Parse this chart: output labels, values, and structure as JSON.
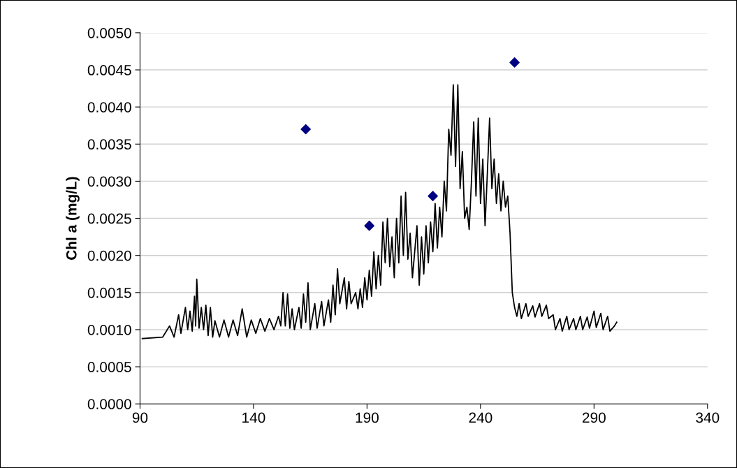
{
  "chart_data": {
    "type": "line",
    "ylabel": "Chl a (mg/L)",
    "xlim": [
      90,
      340
    ],
    "xticks": [
      90,
      140,
      190,
      240,
      290,
      340
    ],
    "ylim": [
      0,
      0.005
    ],
    "yticks": [
      {
        "value": 0,
        "label": "0.0000"
      },
      {
        "value": 0.0005,
        "label": "0.0005"
      },
      {
        "value": 0.001,
        "label": "0.0010"
      },
      {
        "value": 0.0015,
        "label": "0.0015"
      },
      {
        "value": 0.002,
        "label": "0.0020"
      },
      {
        "value": 0.0025,
        "label": "0.0025"
      },
      {
        "value": 0.003,
        "label": "0.0030"
      },
      {
        "value": 0.0035,
        "label": "0.0035"
      },
      {
        "value": 0.004,
        "label": "0.0040"
      },
      {
        "value": 0.0045,
        "label": "0.0045"
      },
      {
        "value": 0.005,
        "label": "0.0050"
      }
    ],
    "grid": "y",
    "series": [
      {
        "color": "#000000",
        "marker": "none",
        "x": [
          91,
          100,
          103,
          105,
          107,
          108,
          110,
          111,
          112,
          113,
          114,
          114.5,
          115,
          116,
          117,
          118,
          119,
          120,
          121,
          122,
          123,
          125,
          127,
          129,
          131,
          133,
          135,
          137,
          139,
          141,
          143,
          145,
          147,
          149,
          151,
          152,
          153,
          154,
          155,
          156,
          157,
          158,
          160,
          161,
          162,
          163,
          164,
          165,
          167,
          168,
          170,
          171,
          173,
          174,
          175,
          176,
          177,
          178,
          180,
          181,
          182,
          183,
          185,
          186,
          187,
          188,
          189,
          190,
          191,
          192,
          193,
          194,
          195,
          196,
          197,
          198,
          199,
          200,
          201,
          202,
          203,
          204,
          205,
          206,
          207,
          208,
          209,
          210,
          212,
          213,
          214,
          215,
          216,
          217,
          218,
          219,
          220,
          221,
          222,
          223,
          224,
          225,
          226,
          227,
          228,
          229,
          230,
          231,
          232,
          233,
          234,
          235,
          236,
          237,
          238,
          239,
          240,
          241,
          242,
          243,
          244,
          245,
          246,
          247,
          248,
          249,
          250,
          251,
          252,
          253,
          254,
          255,
          256,
          257,
          258,
          260,
          261,
          263,
          264,
          266,
          267,
          269,
          270,
          272,
          273,
          275,
          276,
          278,
          279,
          281,
          282,
          284,
          285,
          287,
          288,
          290,
          291,
          293,
          294,
          296,
          297,
          299,
          300
        ],
        "values": [
          0.00088,
          0.0009,
          0.00105,
          0.0009,
          0.0012,
          0.00095,
          0.0013,
          0.001,
          0.00125,
          0.00098,
          0.00145,
          0.00105,
          0.00168,
          0.00102,
          0.0013,
          0.001,
          0.00133,
          0.00092,
          0.0013,
          0.0009,
          0.00112,
          0.0009,
          0.00113,
          0.0009,
          0.00113,
          0.00092,
          0.00128,
          0.0009,
          0.00113,
          0.00095,
          0.00115,
          0.00098,
          0.00115,
          0.001,
          0.00118,
          0.00105,
          0.0015,
          0.00105,
          0.00148,
          0.00102,
          0.00128,
          0.001,
          0.0013,
          0.00102,
          0.00148,
          0.0011,
          0.00163,
          0.001,
          0.00135,
          0.00102,
          0.00138,
          0.00105,
          0.0014,
          0.0011,
          0.0016,
          0.0012,
          0.00182,
          0.00135,
          0.0017,
          0.00128,
          0.00165,
          0.00135,
          0.0015,
          0.00128,
          0.00155,
          0.0013,
          0.0017,
          0.0014,
          0.0018,
          0.00145,
          0.00205,
          0.00155,
          0.002,
          0.0016,
          0.00245,
          0.0019,
          0.0025,
          0.00185,
          0.00225,
          0.0017,
          0.0025,
          0.0019,
          0.0028,
          0.002,
          0.00285,
          0.00195,
          0.0023,
          0.0017,
          0.0024,
          0.0016,
          0.00225,
          0.00175,
          0.0024,
          0.0019,
          0.00245,
          0.00205,
          0.0027,
          0.0021,
          0.00265,
          0.00225,
          0.003,
          0.0026,
          0.0037,
          0.00335,
          0.0043,
          0.0032,
          0.0043,
          0.0029,
          0.0034,
          0.0025,
          0.00265,
          0.00235,
          0.003,
          0.0038,
          0.0028,
          0.00385,
          0.0027,
          0.0033,
          0.0024,
          0.0031,
          0.00385,
          0.0029,
          0.0033,
          0.0027,
          0.0031,
          0.0026,
          0.003,
          0.00265,
          0.0028,
          0.0023,
          0.0015,
          0.0013,
          0.00118,
          0.00135,
          0.00115,
          0.00135,
          0.00118,
          0.00132,
          0.00117,
          0.00135,
          0.00118,
          0.00133,
          0.00115,
          0.0012,
          0.001,
          0.00115,
          0.00098,
          0.00118,
          0.001,
          0.00115,
          0.001,
          0.00118,
          0.001,
          0.00117,
          0.00102,
          0.00125,
          0.00103,
          0.00122,
          0.001,
          0.00118,
          0.00098,
          0.00105,
          0.0011
        ]
      },
      {
        "type": "scatter",
        "color": "#000080",
        "marker": "diamond",
        "x": [
          163,
          191,
          219,
          255
        ],
        "values": [
          0.0037,
          0.0024,
          0.0028,
          0.0046
        ]
      }
    ]
  }
}
